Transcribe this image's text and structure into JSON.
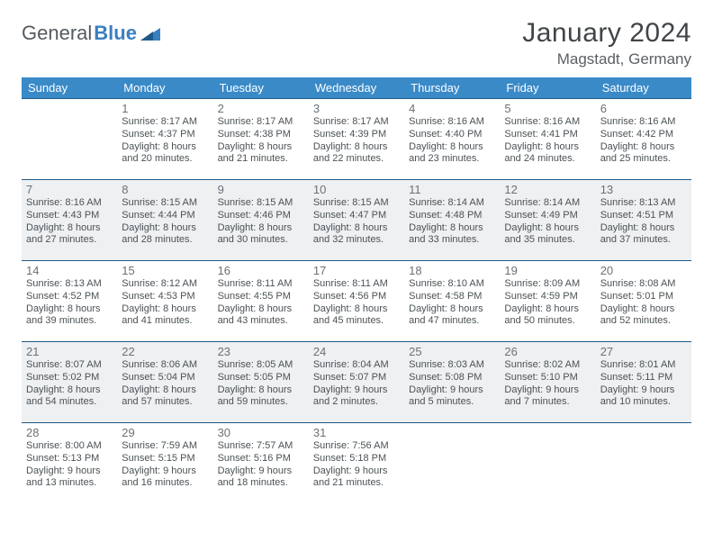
{
  "logo": {
    "text1": "General",
    "text2": "Blue"
  },
  "title": "January 2024",
  "location": "Magstadt, Germany",
  "day_headers": [
    "Sunday",
    "Monday",
    "Tuesday",
    "Wednesday",
    "Thursday",
    "Friday",
    "Saturday"
  ],
  "colors": {
    "header_bg": "#3a8ac8",
    "row_border": "#205a85",
    "alt_row_bg": "#eef0f2",
    "logo_accent": "#3a7fc0"
  },
  "weeks": [
    [
      null,
      {
        "n": "1",
        "sr": "Sunrise: 8:17 AM",
        "ss": "Sunset: 4:37 PM",
        "d1": "Daylight: 8 hours",
        "d2": "and 20 minutes."
      },
      {
        "n": "2",
        "sr": "Sunrise: 8:17 AM",
        "ss": "Sunset: 4:38 PM",
        "d1": "Daylight: 8 hours",
        "d2": "and 21 minutes."
      },
      {
        "n": "3",
        "sr": "Sunrise: 8:17 AM",
        "ss": "Sunset: 4:39 PM",
        "d1": "Daylight: 8 hours",
        "d2": "and 22 minutes."
      },
      {
        "n": "4",
        "sr": "Sunrise: 8:16 AM",
        "ss": "Sunset: 4:40 PM",
        "d1": "Daylight: 8 hours",
        "d2": "and 23 minutes."
      },
      {
        "n": "5",
        "sr": "Sunrise: 8:16 AM",
        "ss": "Sunset: 4:41 PM",
        "d1": "Daylight: 8 hours",
        "d2": "and 24 minutes."
      },
      {
        "n": "6",
        "sr": "Sunrise: 8:16 AM",
        "ss": "Sunset: 4:42 PM",
        "d1": "Daylight: 8 hours",
        "d2": "and 25 minutes."
      }
    ],
    [
      {
        "n": "7",
        "sr": "Sunrise: 8:16 AM",
        "ss": "Sunset: 4:43 PM",
        "d1": "Daylight: 8 hours",
        "d2": "and 27 minutes."
      },
      {
        "n": "8",
        "sr": "Sunrise: 8:15 AM",
        "ss": "Sunset: 4:44 PM",
        "d1": "Daylight: 8 hours",
        "d2": "and 28 minutes."
      },
      {
        "n": "9",
        "sr": "Sunrise: 8:15 AM",
        "ss": "Sunset: 4:46 PM",
        "d1": "Daylight: 8 hours",
        "d2": "and 30 minutes."
      },
      {
        "n": "10",
        "sr": "Sunrise: 8:15 AM",
        "ss": "Sunset: 4:47 PM",
        "d1": "Daylight: 8 hours",
        "d2": "and 32 minutes."
      },
      {
        "n": "11",
        "sr": "Sunrise: 8:14 AM",
        "ss": "Sunset: 4:48 PM",
        "d1": "Daylight: 8 hours",
        "d2": "and 33 minutes."
      },
      {
        "n": "12",
        "sr": "Sunrise: 8:14 AM",
        "ss": "Sunset: 4:49 PM",
        "d1": "Daylight: 8 hours",
        "d2": "and 35 minutes."
      },
      {
        "n": "13",
        "sr": "Sunrise: 8:13 AM",
        "ss": "Sunset: 4:51 PM",
        "d1": "Daylight: 8 hours",
        "d2": "and 37 minutes."
      }
    ],
    [
      {
        "n": "14",
        "sr": "Sunrise: 8:13 AM",
        "ss": "Sunset: 4:52 PM",
        "d1": "Daylight: 8 hours",
        "d2": "and 39 minutes."
      },
      {
        "n": "15",
        "sr": "Sunrise: 8:12 AM",
        "ss": "Sunset: 4:53 PM",
        "d1": "Daylight: 8 hours",
        "d2": "and 41 minutes."
      },
      {
        "n": "16",
        "sr": "Sunrise: 8:11 AM",
        "ss": "Sunset: 4:55 PM",
        "d1": "Daylight: 8 hours",
        "d2": "and 43 minutes."
      },
      {
        "n": "17",
        "sr": "Sunrise: 8:11 AM",
        "ss": "Sunset: 4:56 PM",
        "d1": "Daylight: 8 hours",
        "d2": "and 45 minutes."
      },
      {
        "n": "18",
        "sr": "Sunrise: 8:10 AM",
        "ss": "Sunset: 4:58 PM",
        "d1": "Daylight: 8 hours",
        "d2": "and 47 minutes."
      },
      {
        "n": "19",
        "sr": "Sunrise: 8:09 AM",
        "ss": "Sunset: 4:59 PM",
        "d1": "Daylight: 8 hours",
        "d2": "and 50 minutes."
      },
      {
        "n": "20",
        "sr": "Sunrise: 8:08 AM",
        "ss": "Sunset: 5:01 PM",
        "d1": "Daylight: 8 hours",
        "d2": "and 52 minutes."
      }
    ],
    [
      {
        "n": "21",
        "sr": "Sunrise: 8:07 AM",
        "ss": "Sunset: 5:02 PM",
        "d1": "Daylight: 8 hours",
        "d2": "and 54 minutes."
      },
      {
        "n": "22",
        "sr": "Sunrise: 8:06 AM",
        "ss": "Sunset: 5:04 PM",
        "d1": "Daylight: 8 hours",
        "d2": "and 57 minutes."
      },
      {
        "n": "23",
        "sr": "Sunrise: 8:05 AM",
        "ss": "Sunset: 5:05 PM",
        "d1": "Daylight: 8 hours",
        "d2": "and 59 minutes."
      },
      {
        "n": "24",
        "sr": "Sunrise: 8:04 AM",
        "ss": "Sunset: 5:07 PM",
        "d1": "Daylight: 9 hours",
        "d2": "and 2 minutes."
      },
      {
        "n": "25",
        "sr": "Sunrise: 8:03 AM",
        "ss": "Sunset: 5:08 PM",
        "d1": "Daylight: 9 hours",
        "d2": "and 5 minutes."
      },
      {
        "n": "26",
        "sr": "Sunrise: 8:02 AM",
        "ss": "Sunset: 5:10 PM",
        "d1": "Daylight: 9 hours",
        "d2": "and 7 minutes."
      },
      {
        "n": "27",
        "sr": "Sunrise: 8:01 AM",
        "ss": "Sunset: 5:11 PM",
        "d1": "Daylight: 9 hours",
        "d2": "and 10 minutes."
      }
    ],
    [
      {
        "n": "28",
        "sr": "Sunrise: 8:00 AM",
        "ss": "Sunset: 5:13 PM",
        "d1": "Daylight: 9 hours",
        "d2": "and 13 minutes."
      },
      {
        "n": "29",
        "sr": "Sunrise: 7:59 AM",
        "ss": "Sunset: 5:15 PM",
        "d1": "Daylight: 9 hours",
        "d2": "and 16 minutes."
      },
      {
        "n": "30",
        "sr": "Sunrise: 7:57 AM",
        "ss": "Sunset: 5:16 PM",
        "d1": "Daylight: 9 hours",
        "d2": "and 18 minutes."
      },
      {
        "n": "31",
        "sr": "Sunrise: 7:56 AM",
        "ss": "Sunset: 5:18 PM",
        "d1": "Daylight: 9 hours",
        "d2": "and 21 minutes."
      },
      null,
      null,
      null
    ]
  ]
}
